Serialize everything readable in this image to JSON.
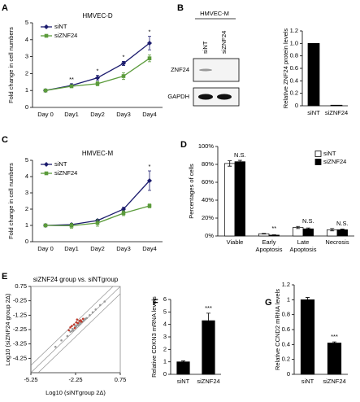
{
  "chart_data": [
    {
      "panel": "A",
      "type": "line",
      "title": "HMVEC-D",
      "ylabel": "Fold change in cell numbers",
      "categories": [
        "Day 0",
        "Day1",
        "Day2",
        "Day3",
        "Day4"
      ],
      "series": [
        {
          "name": "siNT",
          "color": "#1c1c6e",
          "marker": "diamond",
          "values": [
            1,
            1.3,
            1.75,
            2.6,
            3.8
          ],
          "errors": [
            0.08,
            0.1,
            0.15,
            0.12,
            0.4
          ]
        },
        {
          "name": "siZNF24",
          "color": "#5b9b3b",
          "marker": "square",
          "values": [
            1,
            1.25,
            1.4,
            1.85,
            2.9
          ],
          "errors": [
            0.05,
            0.08,
            0.12,
            0.2,
            0.2
          ]
        }
      ],
      "annotations": [
        null,
        "**",
        "*",
        "*",
        "*"
      ],
      "ylim": [
        0,
        5
      ],
      "yticks": [
        0,
        1,
        2,
        3,
        4,
        5
      ]
    },
    {
      "panel": "B",
      "type": "bar",
      "ylabel": "Relative ZNF24 protein levels",
      "blot": {
        "title": "HMVEC-M",
        "lanes": [
          "siNT",
          "siZNF24"
        ],
        "rows": [
          "ZNF24",
          "GAPDH"
        ]
      },
      "categories": [
        "siNT",
        "siZNF24"
      ],
      "values": [
        1,
        0.01
      ],
      "color": "#000000",
      "ylim": [
        0,
        1.2
      ],
      "yticks": [
        0,
        0.2,
        0.4,
        0.6,
        0.8,
        {
          "value": 1,
          "label": "1.0"
        },
        1.2
      ]
    },
    {
      "panel": "C",
      "type": "line",
      "title": "HMVEC-M",
      "ylabel": "Fold change in cell numbers",
      "categories": [
        "Day 0",
        "Day1",
        "Day2",
        "Day3",
        "Day4"
      ],
      "series": [
        {
          "name": "siNT",
          "color": "#1c1c6e",
          "marker": "diamond",
          "values": [
            1,
            1.05,
            1.3,
            2.0,
            3.75
          ],
          "errors": [
            0.05,
            0.08,
            0.08,
            0.12,
            0.6
          ]
        },
        {
          "name": "siZNF24",
          "color": "#5b9b3b",
          "marker": "square",
          "values": [
            1,
            0.98,
            1.15,
            1.75,
            2.2
          ],
          "errors": [
            0.05,
            0.15,
            0.2,
            0.15,
            0.12
          ]
        }
      ],
      "annotations": [
        null,
        null,
        null,
        null,
        "*"
      ],
      "ylim": [
        0,
        5
      ],
      "yticks": [
        0,
        1,
        2,
        3,
        4,
        5
      ]
    },
    {
      "panel": "D",
      "type": "bar",
      "ylabel": "Percentages of cells",
      "categories": [
        "Viable",
        "Early Apoptosis",
        "Late Apoptosis",
        "Necrosis"
      ],
      "series": [
        {
          "name": "siNT",
          "color": "#ffffff",
          "values": [
            81,
            2.5,
            9.5,
            7
          ],
          "errors": [
            3,
            0.3,
            1.2,
            1.3
          ]
        },
        {
          "name": "siZNF24",
          "color": "#000000",
          "values": [
            83,
            1,
            8,
            7
          ],
          "errors": [
            1.5,
            0.3,
            1,
            0.8
          ]
        }
      ],
      "annotations": [
        "N.S.",
        "**",
        "N.S.",
        "N.S."
      ],
      "ylim": [
        0,
        100
      ],
      "yticks": [
        {
          "value": 0,
          "label": "0%"
        },
        {
          "value": 20,
          "label": "20%"
        },
        {
          "value": 40,
          "label": "40%"
        },
        {
          "value": 60,
          "label": "60%"
        },
        {
          "value": 80,
          "label": "80%"
        },
        {
          "value": 100,
          "label": "100%"
        }
      ]
    },
    {
      "panel": "E",
      "type": "scatter",
      "title": "siZNF24 group vs. siNTgroup",
      "xlabel": "Log10 (siNTgroup 2Δ)",
      "ylabel": "Log10 (siZNF24 group 2Δ)",
      "series": [
        {
          "color": "#9a9a9a",
          "x": [
            -2.8,
            -2.6,
            -2.5,
            -2.45,
            -2.4,
            -2.3,
            -2.25,
            -2.2,
            -2.15,
            -2.1,
            -2.05,
            -2.0,
            -1.95,
            -1.9,
            -1.8,
            -1.7,
            -1.6,
            -1.5,
            -1.3,
            -1.1,
            -0.9,
            -0.6,
            -0.3,
            -3.2,
            -3.6
          ],
          "y": [
            -2.7,
            -2.4,
            -2.35,
            -2.2,
            -2.3,
            -2.1,
            -2.0,
            -2.05,
            -1.95,
            -1.9,
            -1.95,
            -1.8,
            -1.85,
            -1.75,
            -1.7,
            -1.6,
            -1.5,
            -1.45,
            -1.25,
            -1.05,
            -0.85,
            -0.55,
            -0.3,
            -3.0,
            -3.45
          ]
        },
        {
          "color": "#c0392b",
          "x": [
            -2.7,
            -2.5,
            -2.35,
            -2.3,
            -2.2,
            -2.1,
            -2.0,
            -1.9,
            -1.85,
            -2.6,
            -2.15,
            -1.75
          ],
          "y": [
            -2.3,
            -2.0,
            -1.9,
            -2.15,
            -1.75,
            -1.8,
            -1.65,
            -1.6,
            -1.7,
            -2.1,
            -1.55,
            -1.5
          ]
        }
      ],
      "xlim": [
        -5.25,
        0.75
      ],
      "xticks": [
        -5.25,
        -2.25,
        0.75
      ],
      "ylim": [
        -5.25,
        0.75
      ],
      "yticks": [
        0.75,
        -0.25,
        -1.25,
        -2.25,
        -3.25,
        -4.25
      ]
    },
    {
      "panel": "F",
      "type": "bar",
      "ylabel": "Relative CDKN3 mRNA levels",
      "categories": [
        "siNT",
        "siZNF24"
      ],
      "values": [
        1,
        4.3
      ],
      "errors": [
        0.08,
        0.6
      ],
      "color": "#000000",
      "annotations": [
        null,
        "***"
      ],
      "ylim": [
        0,
        6
      ],
      "yticks": [
        0,
        1,
        2,
        3,
        4,
        5,
        6
      ]
    },
    {
      "panel": "G",
      "type": "bar",
      "ylabel": "Relative CCND2 mRNA levels",
      "categories": [
        "siNT",
        "siZNF24"
      ],
      "values": [
        1,
        0.42
      ],
      "errors": [
        0.03,
        0.015
      ],
      "color": "#000000",
      "annotations": [
        null,
        "***"
      ],
      "ylim": [
        0,
        1.2
      ],
      "yticks": [
        0,
        0.2,
        0.4,
        0.6,
        0.8,
        1,
        1.2
      ]
    }
  ]
}
